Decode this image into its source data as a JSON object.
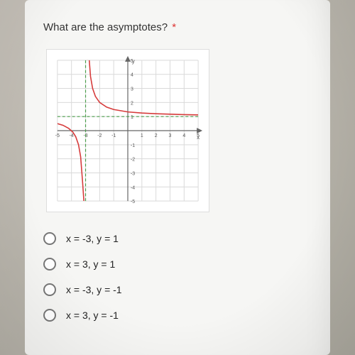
{
  "question": {
    "text": "What are the asymptotes?",
    "required_marker": "*"
  },
  "graph": {
    "type": "line",
    "xlim": [
      -5,
      5
    ],
    "ylim": [
      -5,
      5
    ],
    "tick_step": 1,
    "grid_on": true,
    "background_color": "#ffffff",
    "grid_color": "#d9d9d9",
    "axis_color": "#666666",
    "axis_width": 1.2,
    "tick_label_fontsize": 7,
    "tick_label_color": "#555555",
    "tick_labels_x": [
      "-5",
      "-4",
      "-3",
      "-2",
      "-1",
      "0",
      "1",
      "2",
      "3",
      "4",
      "5"
    ],
    "tick_labels_y": [
      "-5",
      "-4",
      "-3",
      "-2",
      "-1",
      "",
      "1",
      "2",
      "3",
      "4",
      "5"
    ],
    "asymptotes": {
      "vertical_x": -3,
      "horizontal_y": 1,
      "color": "#4a9e4a",
      "dash": "4,3",
      "width": 1.2
    },
    "curve": {
      "color": "#d63b3b",
      "width": 1.6,
      "left_branch": [
        [
          -5,
          0.5
        ],
        [
          -4.6,
          0.38
        ],
        [
          -4.2,
          0.16
        ],
        [
          -3.9,
          -0.11
        ],
        [
          -3.7,
          -0.43
        ],
        [
          -3.5,
          -1.0
        ],
        [
          -3.35,
          -1.86
        ],
        [
          -3.22,
          -3.55
        ],
        [
          -3.12,
          -5.0
        ]
      ],
      "right_branch": [
        [
          -2.88,
          5.0
        ],
        [
          -2.78,
          5.55
        ],
        [
          -2.65,
          3.86
        ],
        [
          -2.5,
          3.0
        ],
        [
          -2.3,
          2.43
        ],
        [
          -2.0,
          2.0
        ],
        [
          -1.5,
          1.67
        ],
        [
          -1.0,
          1.5
        ],
        [
          0.0,
          1.33
        ],
        [
          1.0,
          1.25
        ],
        [
          2.0,
          1.2
        ],
        [
          3.0,
          1.17
        ],
        [
          4.0,
          1.14
        ],
        [
          5.0,
          1.12
        ]
      ]
    },
    "y_arrow": true
  },
  "options": [
    {
      "label": "x = -3, y = 1"
    },
    {
      "label": "x = 3, y = 1"
    },
    {
      "label": "x = -3, y = -1"
    },
    {
      "label": "x = 3, y = -1"
    }
  ],
  "colors": {
    "paper_bg": "#f6f6f4",
    "text": "#333333",
    "radio_border": "#777777"
  }
}
